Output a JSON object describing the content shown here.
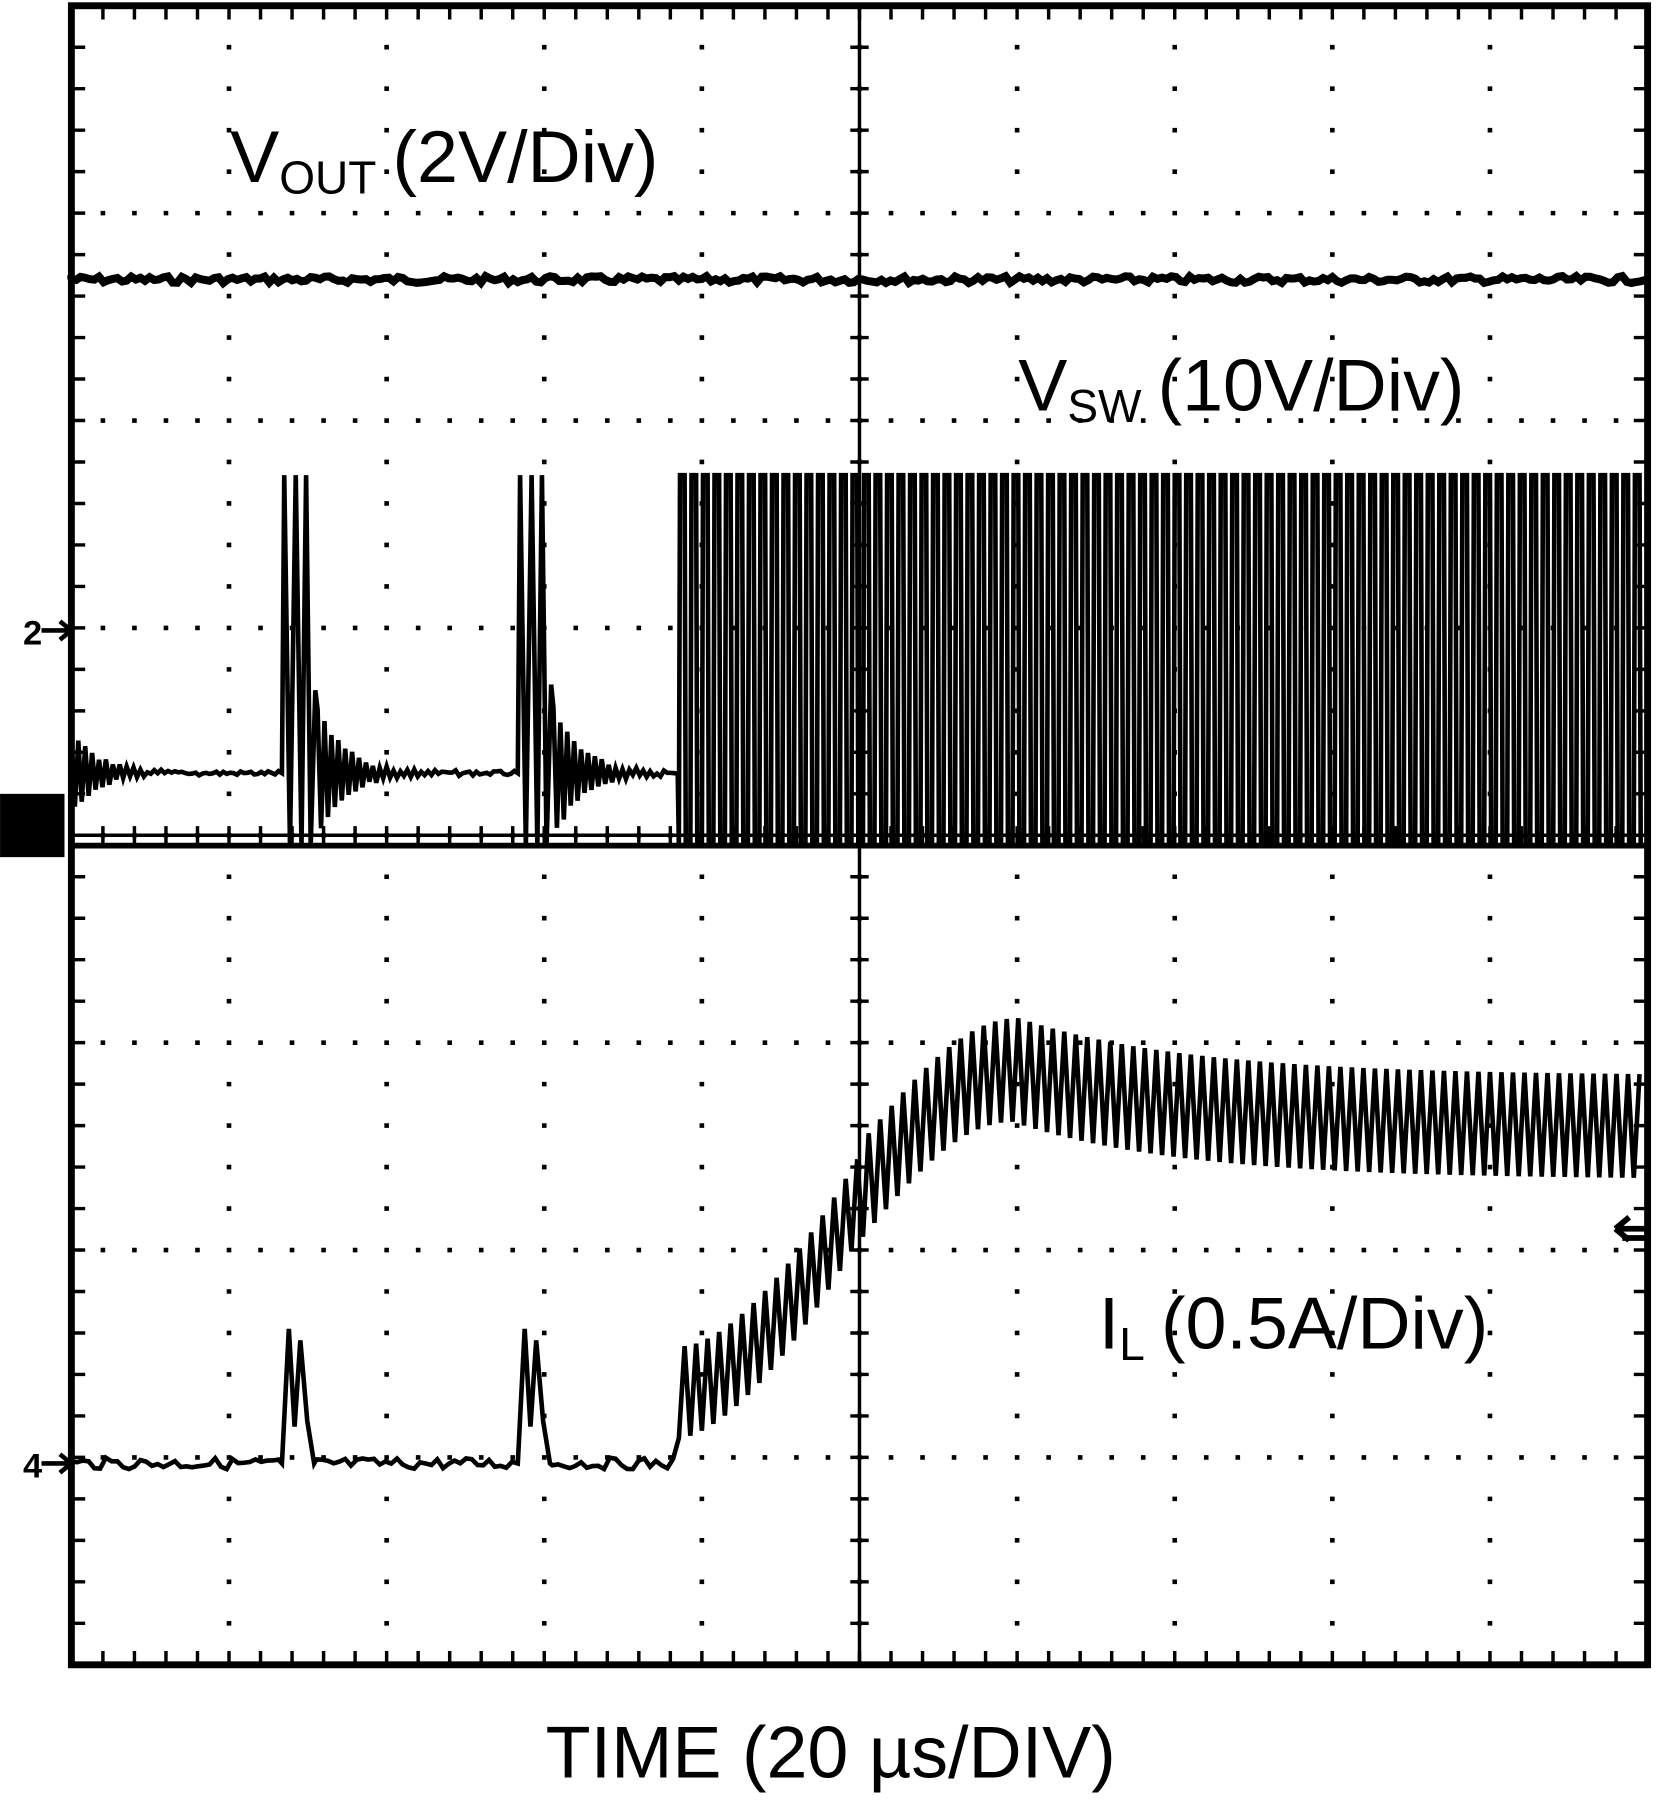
{
  "traces": [
    {
      "symbol": "V",
      "subscript": "OUT",
      "scale": "(2V/Div)"
    },
    {
      "symbol": "V",
      "subscript": "SW",
      "scale": "(10V/Div)"
    },
    {
      "symbol": "I",
      "subscript": "L",
      "scale": "(0.5A/Div)"
    }
  ],
  "channel_markers": [
    "2",
    "4"
  ],
  "x_axis_label": "TIME (20 µs/DIV)"
}
